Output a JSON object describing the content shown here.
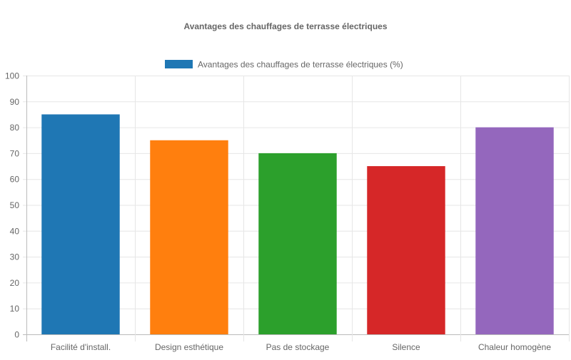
{
  "chart_data": {
    "type": "bar",
    "title": "Avantages des chauffages de terrasse électriques",
    "categories": [
      "Facilité d'install.",
      "Design esthétique",
      "Pas de stockage",
      "Silence",
      "Chaleur homogène"
    ],
    "series": [
      {
        "name": "Avantages des chauffages de terrasse électriques (%)",
        "values": [
          85,
          75,
          70,
          65,
          80
        ],
        "colors": [
          "#1f77b4",
          "#ff7f0e",
          "#2ca02c",
          "#d62728",
          "#9467bd"
        ]
      }
    ],
    "ylim": [
      0,
      100
    ],
    "yticks": [
      "0",
      "10",
      "20",
      "30",
      "40",
      "50",
      "60",
      "70",
      "80",
      "90",
      "100"
    ],
    "grid": true,
    "legend": "top"
  }
}
